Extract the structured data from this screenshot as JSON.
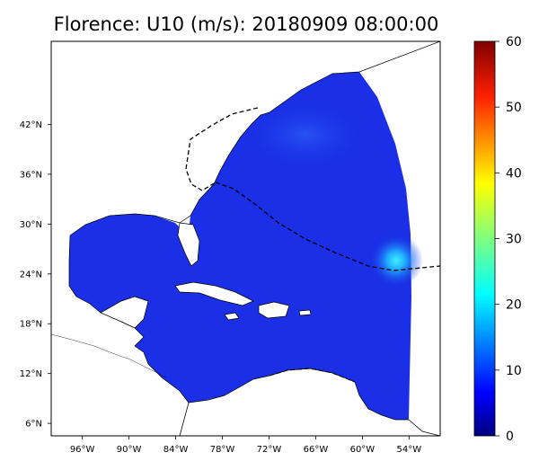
{
  "title": "Florence: U10 (m/s): 20180909 08:00:00",
  "colorbar": {
    "min": 0,
    "max": 60,
    "ticks": [
      "0",
      "10",
      "20",
      "30",
      "40",
      "50",
      "60"
    ],
    "colors": [
      "#00007f",
      "#0000ff",
      "#007fff",
      "#00ffff",
      "#7fff7f",
      "#ffff00",
      "#ff7f00",
      "#ff0000",
      "#7f0000"
    ]
  },
  "map": {
    "lon_range": [
      -100,
      -50
    ],
    "lat_range": [
      4.5,
      52
    ],
    "ocean_color": "#1a2fe6",
    "storm_color": "#27d6f2",
    "land_color": "#ffffff",
    "lon_ticks": [
      {
        "value": -96,
        "label": "96°W"
      },
      {
        "value": -90,
        "label": "90°W"
      },
      {
        "value": -84,
        "label": "84°W"
      },
      {
        "value": -78,
        "label": "78°W"
      },
      {
        "value": -72,
        "label": "72°W"
      },
      {
        "value": -66,
        "label": "66°W"
      },
      {
        "value": -60,
        "label": "60°W"
      },
      {
        "value": -54,
        "label": "54°W"
      }
    ],
    "lat_ticks": [
      {
        "value": 6,
        "label": "6°N"
      },
      {
        "value": 12,
        "label": "12°N"
      },
      {
        "value": 18,
        "label": "18°N"
      },
      {
        "value": 24,
        "label": "24°N"
      },
      {
        "value": 30,
        "label": "30°N"
      },
      {
        "value": 36,
        "label": "36°N"
      },
      {
        "value": 42,
        "label": "42°N"
      }
    ],
    "storm_center": {
      "lon": -55,
      "lat": 24.8
    }
  }
}
